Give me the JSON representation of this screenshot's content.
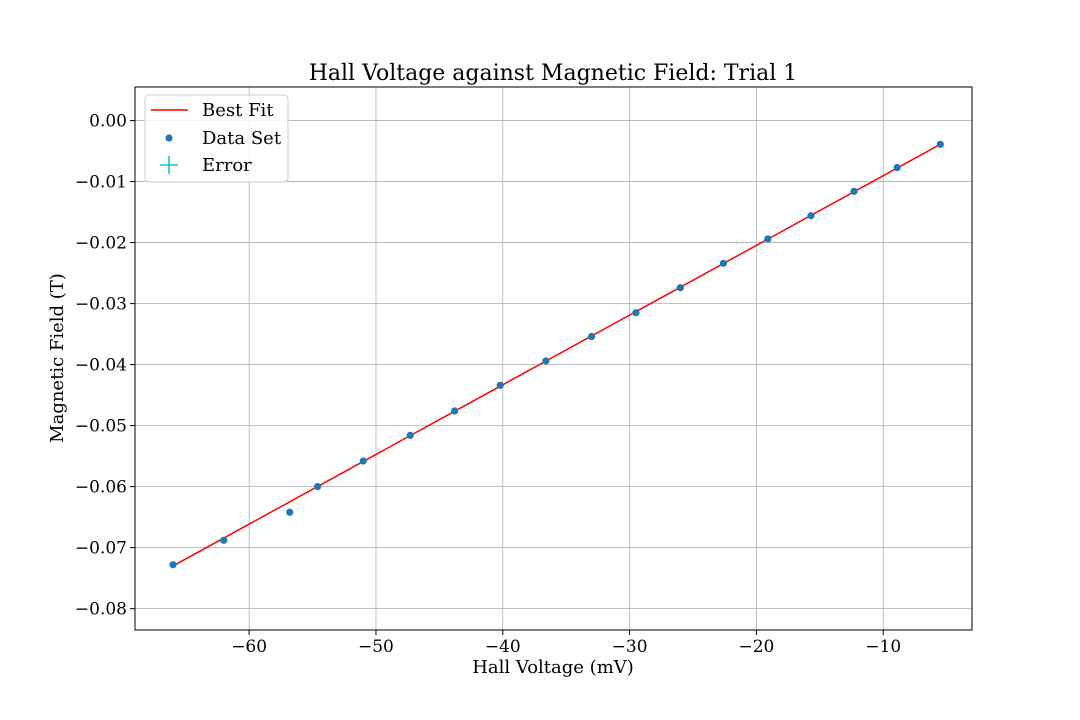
{
  "chart_data": {
    "type": "scatter",
    "title": "Hall Voltage against Magnetic Field: Trial 1",
    "xlabel": "Hall Voltage (mV)",
    "ylabel": "Magnetic Field (T)",
    "xlim": [
      -69,
      -3
    ],
    "ylim": [
      -0.0835,
      0.0055
    ],
    "x_ticks": [
      -60,
      -50,
      -40,
      -30,
      -20,
      -10
    ],
    "x_tick_labels": [
      "−60",
      "−50",
      "−40",
      "−30",
      "−20",
      "−10"
    ],
    "y_ticks": [
      0.0,
      -0.01,
      -0.02,
      -0.03,
      -0.04,
      -0.05,
      -0.06,
      -0.07,
      -0.08
    ],
    "y_tick_labels": [
      "0.00",
      "−0.01",
      "−0.02",
      "−0.03",
      "−0.04",
      "−0.05",
      "−0.06",
      "−0.07",
      "−0.08"
    ],
    "grid": true,
    "legend_position": "top-left",
    "series": [
      {
        "name": "Best Fit",
        "kind": "line",
        "color": "#ff0000",
        "x": [
          -66.0,
          -5.5
        ],
        "y": [
          -0.073,
          -0.0039
        ]
      },
      {
        "name": "Data Set",
        "kind": "scatter",
        "color": "#1f77b4",
        "x": [
          -66.0,
          -62.0,
          -56.8,
          -54.6,
          -51.0,
          -47.3,
          -43.8,
          -40.2,
          -36.6,
          -33.0,
          -29.5,
          -26.0,
          -22.6,
          -19.1,
          -15.7,
          -12.3,
          -8.9,
          -5.5
        ],
        "y": [
          -0.0728,
          -0.0688,
          -0.0642,
          -0.06,
          -0.0558,
          -0.0516,
          -0.0476,
          -0.0434,
          -0.0394,
          -0.0354,
          -0.0315,
          -0.0274,
          -0.0234,
          -0.0194,
          -0.0156,
          -0.0116,
          -0.0077,
          -0.0039
        ]
      },
      {
        "name": "Error",
        "kind": "errorbar",
        "color": "#17becf"
      }
    ]
  }
}
